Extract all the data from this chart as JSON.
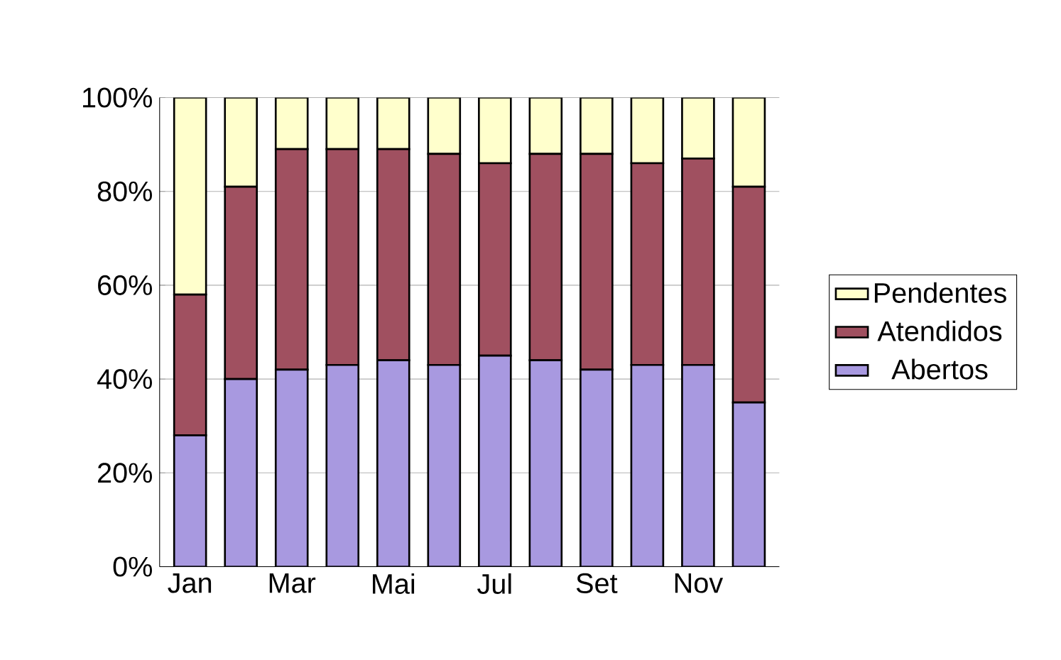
{
  "chart_data": {
    "type": "bar",
    "stacked": true,
    "categories": [
      "Jan",
      null,
      "Mar",
      null,
      "Mai",
      null,
      "Jul",
      null,
      "Set",
      null,
      "Nov",
      null
    ],
    "series": [
      {
        "name": "Abertos",
        "color": "#a899e0",
        "values": [
          28,
          40,
          42,
          43,
          44,
          43,
          45,
          44,
          42,
          43,
          43,
          35
        ]
      },
      {
        "name": "Atendidos",
        "color": "#a05060",
        "values": [
          30,
          41,
          47,
          46,
          45,
          45,
          41,
          44,
          46,
          43,
          44,
          46
        ]
      },
      {
        "name": "Pendentes",
        "color": "#ffffcc",
        "values": [
          42,
          19,
          11,
          11,
          11,
          12,
          14,
          12,
          12,
          14,
          13,
          19
        ]
      }
    ],
    "ylim": [
      0,
      100
    ],
    "yticks": [
      {
        "value": 0,
        "label": "0%"
      },
      {
        "value": 20,
        "label": "20%"
      },
      {
        "value": 40,
        "label": "40%"
      },
      {
        "value": 60,
        "label": "60%"
      },
      {
        "value": 80,
        "label": "80%"
      },
      {
        "value": 100,
        "label": "100%"
      }
    ],
    "grid": "y",
    "legend": "right"
  }
}
